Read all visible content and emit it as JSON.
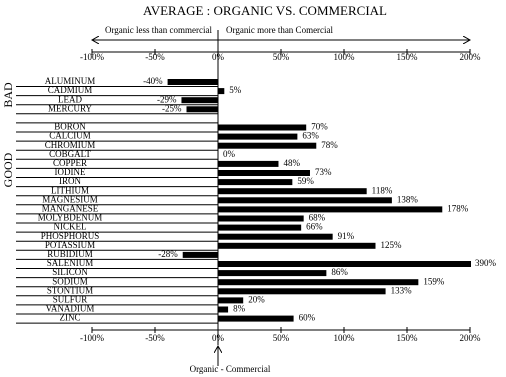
{
  "chart_data": {
    "type": "bar",
    "orientation": "horizontal",
    "title": "AVERAGE : ORGANIC VS. COMMERCIAL",
    "left_arrow_label": "Organic less than commercial",
    "right_arrow_label": "Organic more than Comercial",
    "x_label": "Organic - Commercial",
    "group_labels": [
      "BAD",
      "GOOD"
    ],
    "categories": [
      "ALUMINUM",
      "CADMIUM",
      "LEAD",
      "MERCURY",
      null,
      "BORON",
      "CALCIUM",
      "CHROMIUM",
      "COBGALT",
      "COPPER",
      "IODINE",
      "IRON",
      "LITHIUM",
      "MAGNESIUM",
      "MANGANESE",
      "MOLYBDENUM",
      "NICKEL",
      "PHOSPHORUS",
      "POTASSIUM",
      "RUBIDIUM",
      "SALENIUM",
      "SILICON",
      "SODIUM",
      "STONTIUM",
      "SULFUR",
      "VANADIUM",
      "ZINC"
    ],
    "values": [
      -40,
      5,
      -29,
      -25,
      null,
      70,
      63,
      78,
      0,
      48,
      73,
      59,
      118,
      138,
      178,
      68,
      66,
      91,
      125,
      -28,
      390,
      86,
      159,
      133,
      20,
      8,
      60
    ],
    "value_labels": [
      "-40%",
      "5%",
      "-29%",
      "-25%",
      null,
      "70%",
      "63%",
      "78%",
      "0%",
      "48%",
      "73%",
      "59%",
      "118%",
      "138%",
      "178%",
      "68%",
      "66%",
      "91%",
      "125%",
      "-28%",
      "390%",
      "86%",
      "159%",
      "133%",
      "20%",
      "8%",
      "60%"
    ],
    "color": "#000000",
    "xlim": [
      -100,
      200
    ],
    "xticks": [
      {
        "value": -100,
        "label": "-100%"
      },
      {
        "value": -50,
        "label": "-50%"
      },
      {
        "value": 0,
        "label": "0%"
      },
      {
        "value": 50,
        "label": "50%"
      },
      {
        "value": 100,
        "label": "100%"
      },
      {
        "value": 150,
        "label": "150%"
      },
      {
        "value": 200,
        "label": "200%"
      }
    ]
  }
}
